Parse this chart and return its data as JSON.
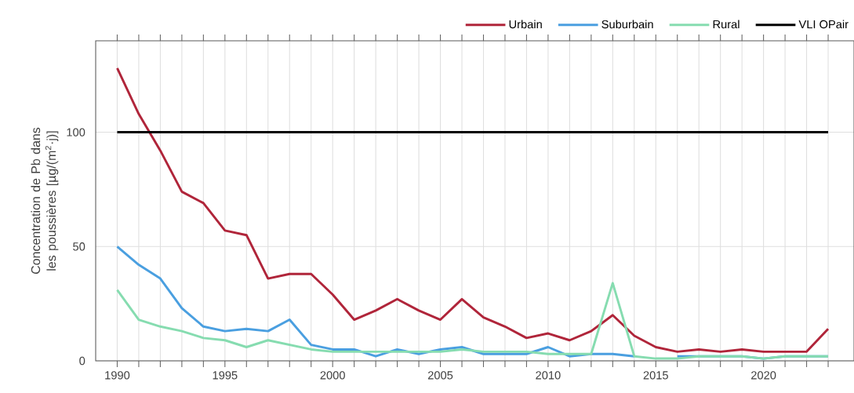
{
  "chart_data": {
    "type": "line",
    "ylabel": "Concentration de Pb dans les poussières [µg/(m$^{2}$·j)]",
    "x": [
      1990,
      1991,
      1992,
      1993,
      1994,
      1995,
      1996,
      1997,
      1998,
      1999,
      2000,
      2001,
      2002,
      2003,
      2004,
      2005,
      2006,
      2007,
      2008,
      2009,
      2010,
      2011,
      2012,
      2013,
      2014,
      2015,
      2016,
      2017,
      2018,
      2019,
      2020,
      2021,
      2022,
      2023
    ],
    "series": [
      {
        "name": "Urbain",
        "color": "#b0253a",
        "values": [
          128,
          108,
          92,
          74,
          69,
          57,
          55,
          36,
          38,
          38,
          29,
          18,
          22,
          27,
          22,
          18,
          27,
          19,
          15,
          10,
          12,
          9,
          13,
          20,
          11,
          6,
          4,
          5,
          4,
          5,
          4,
          4,
          4,
          14
        ]
      },
      {
        "name": "Suburbain",
        "color": "#4a9fe0",
        "values": [
          50,
          42,
          36,
          23,
          15,
          13,
          14,
          13,
          18,
          7,
          5,
          5,
          2,
          5,
          3,
          5,
          6,
          3,
          3,
          3,
          6,
          2,
          3,
          3,
          2,
          null,
          2,
          2,
          2,
          2,
          1,
          2,
          2,
          2
        ]
      },
      {
        "name": "Rural",
        "color": "#86dcb0",
        "values": [
          31,
          18,
          15,
          13,
          10,
          9,
          6,
          9,
          7,
          5,
          4,
          4,
          4,
          4,
          4,
          4,
          5,
          4,
          4,
          4,
          3,
          3,
          3,
          34,
          2,
          1,
          1,
          2,
          2,
          2,
          1,
          2,
          2,
          2
        ]
      },
      {
        "name": "VLI OPair",
        "color": "#000000",
        "x": [
          1990,
          2023
        ],
        "values": [
          100,
          100
        ]
      }
    ],
    "xlim": [
      1989,
      2024.2
    ],
    "ylim": [
      0,
      140
    ],
    "xticks": [
      1990,
      {
        "value": 1991,
        "label": null
      },
      {
        "value": 1992,
        "label": null
      },
      {
        "value": 1993,
        "label": null
      },
      {
        "value": 1994,
        "label": null
      },
      1995,
      {
        "value": 1996,
        "label": null
      },
      {
        "value": 1997,
        "label": null
      },
      {
        "value": 1998,
        "label": null
      },
      {
        "value": 1999,
        "label": null
      },
      2000,
      {
        "value": 2001,
        "label": null
      },
      {
        "value": 2002,
        "label": null
      },
      {
        "value": 2003,
        "label": null
      },
      {
        "value": 2004,
        "label": null
      },
      2005,
      {
        "value": 2006,
        "label": null
      },
      {
        "value": 2007,
        "label": null
      },
      {
        "value": 2008,
        "label": null
      },
      {
        "value": 2009,
        "label": null
      },
      2010,
      {
        "value": 2011,
        "label": null
      },
      {
        "value": 2012,
        "label": null
      },
      {
        "value": 2013,
        "label": null
      },
      {
        "value": 2014,
        "label": null
      },
      2015,
      {
        "value": 2016,
        "label": null
      },
      {
        "value": 2017,
        "label": null
      },
      {
        "value": 2018,
        "label": null
      },
      {
        "value": 2019,
        "label": null
      },
      2020,
      {
        "value": 2021,
        "label": null
      },
      {
        "value": 2022,
        "label": null
      },
      {
        "value": 2023,
        "label": null
      }
    ],
    "yticks": [
      0,
      50,
      100
    ],
    "grid": true,
    "legend": "top right",
    "marker": "none",
    "line_style": "solid"
  }
}
